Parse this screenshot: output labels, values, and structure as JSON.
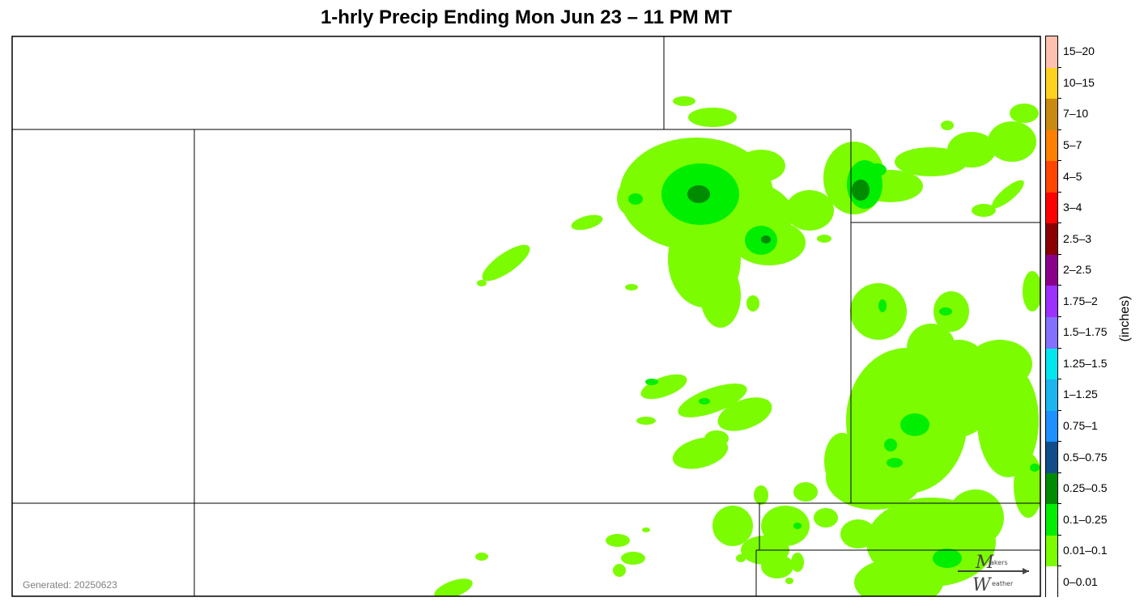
{
  "title": "1-hrly Precip Ending Mon Jun 23 – 11 PM MT",
  "generated": "Generated: 20250623",
  "units_label": "(inches)",
  "logo_text": [
    "akers",
    "eather"
  ],
  "legend": [
    {
      "label": "15–20",
      "color": "#ffc0b0"
    },
    {
      "label": "10–15",
      "color": "#ffd21f"
    },
    {
      "label": "7–10",
      "color": "#c88a10"
    },
    {
      "label": "5–7",
      "color": "#ff7f00"
    },
    {
      "label": "4–5",
      "color": "#ff4500"
    },
    {
      "label": "3–4",
      "color": "#ff0000"
    },
    {
      "label": "2.5–3",
      "color": "#8b0000"
    },
    {
      "label": "2–2.5",
      "color": "#8b008b"
    },
    {
      "label": "1.75–2",
      "color": "#9b30ff"
    },
    {
      "label": "1.5–1.75",
      "color": "#8470ff"
    },
    {
      "label": "1.25–1.5",
      "color": "#00e5ee"
    },
    {
      "label": "1–1.25",
      "color": "#1cb5ee"
    },
    {
      "label": "0.75–1",
      "color": "#1e90ff"
    },
    {
      "label": "0.5–0.75",
      "color": "#104e8b"
    },
    {
      "label": "0.25–0.5",
      "color": "#008b00"
    },
    {
      "label": "0.1–0.25",
      "color": "#00ee00"
    },
    {
      "label": "0.01–0.1",
      "color": "#7cfc00"
    },
    {
      "label": "0–0.01",
      "color": "#ffffff"
    }
  ]
}
